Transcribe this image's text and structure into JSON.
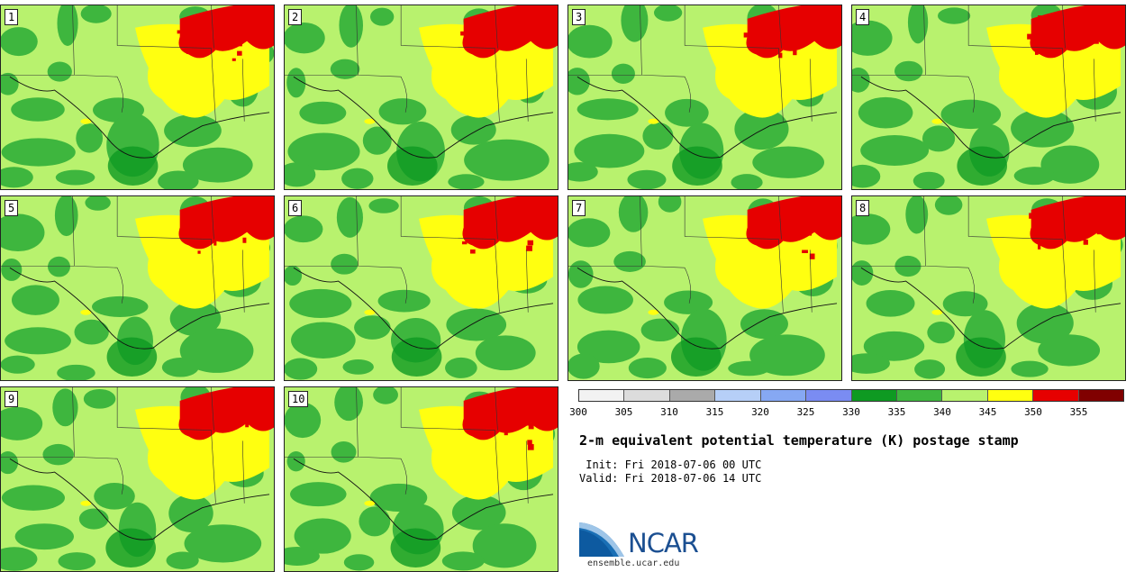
{
  "panels": [
    "1",
    "2",
    "3",
    "4",
    "5",
    "6",
    "7",
    "8",
    "9",
    "10"
  ],
  "colorbar": {
    "colors": [
      "#f2f2f2",
      "#dcdcdc",
      "#aaaaaa",
      "#b6cff7",
      "#86a8f3",
      "#7a8cf2",
      "#0e9a22",
      "#3eb63e",
      "#b8f26e",
      "#ffff10",
      "#e60000",
      "#800000"
    ],
    "ticks": [
      "300",
      "305",
      "310",
      "315",
      "320",
      "325",
      "330",
      "335",
      "340",
      "345",
      "350",
      "355"
    ]
  },
  "title": "2-m equivalent potential temperature (K) postage stamp",
  "init": " Init: Fri 2018-07-06 00 UTC",
  "valid": "Valid: Fri 2018-07-06 14 UTC",
  "logo": {
    "text": "NCAR",
    "color": "#1b4f91"
  },
  "site": "ensemble.ucar.edu"
}
